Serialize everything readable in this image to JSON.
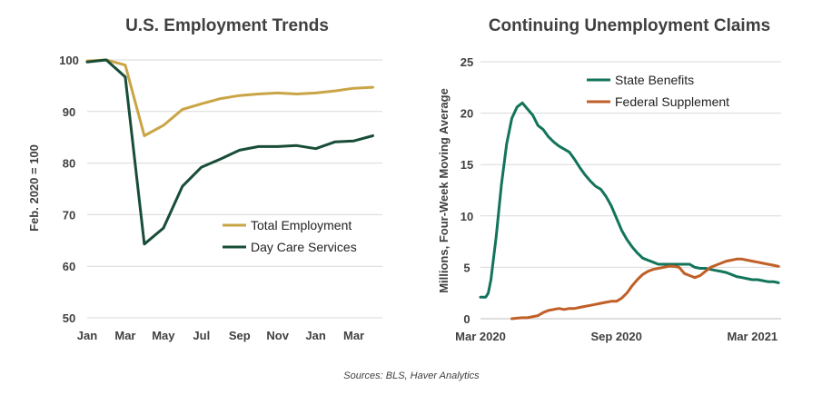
{
  "source": "Sources: BLS, Haver Analytics",
  "colors": {
    "gold": "#c9a545",
    "darkgreen": "#184d37",
    "green": "#12745a",
    "orange": "#c05f27"
  },
  "chart_data": [
    {
      "type": "line",
      "title": "U.S. Employment Trends",
      "ylabel": "Feb. 2020 = 100",
      "xlabel": "",
      "ylim": [
        50,
        100
      ],
      "yticks": [
        50,
        60,
        70,
        80,
        90,
        100
      ],
      "x_tick_labels": [
        "Jan",
        "Mar",
        "May",
        "Jul",
        "Sep",
        "Nov",
        "Jan",
        "Mar"
      ],
      "x_tick_positions": [
        0,
        2,
        4,
        6,
        8,
        10,
        12,
        14
      ],
      "x": [
        0,
        1,
        2,
        3,
        4,
        5,
        6,
        7,
        8,
        9,
        10,
        11,
        12,
        13,
        14,
        15
      ],
      "legend_position": "center-right",
      "grid": true,
      "series": [
        {
          "name": "Total Employment",
          "color": "#c9a545",
          "values": [
            99.8,
            100,
            99,
            85.3,
            87.3,
            90.4,
            91.5,
            92.5,
            93.1,
            93.4,
            93.6,
            93.4,
            93.6,
            94,
            94.5,
            94.7
          ]
        },
        {
          "name": "Day Care Services",
          "color": "#184d37",
          "values": [
            99.6,
            100,
            96.7,
            64.3,
            67.4,
            75.5,
            79.2,
            80.8,
            82.5,
            83.2,
            83.2,
            83.4,
            82.8,
            84.1,
            84.3,
            85.3
          ]
        }
      ]
    },
    {
      "type": "line",
      "title": "Continuing Unemployment Claims",
      "ylabel": "Millions, Four-Week Moving Average",
      "xlabel": "",
      "ylim": [
        0,
        25
      ],
      "yticks": [
        0,
        5,
        10,
        15,
        20,
        25
      ],
      "x_tick_labels": [
        "Mar 2020",
        "Sep 2020",
        "Mar 2021"
      ],
      "x_tick_positions": [
        0,
        26,
        52
      ],
      "legend_position": "top-center",
      "grid": true,
      "series": [
        {
          "name": "State Benefits",
          "color": "#12745a",
          "x": [
            0,
            1,
            1.5,
            2,
            3,
            4,
            5,
            6,
            7,
            8,
            9,
            10,
            11,
            12,
            13,
            14,
            15,
            16,
            17,
            18,
            19,
            20,
            21,
            22,
            23,
            24,
            25,
            26,
            27,
            28,
            29,
            30,
            31,
            32,
            33,
            34,
            35,
            36,
            37,
            38,
            39,
            40,
            41,
            42,
            43,
            44,
            45,
            46,
            47,
            48,
            49,
            50,
            51,
            52,
            53,
            54,
            55,
            56,
            57
          ],
          "values": [
            2.1,
            2.1,
            2.5,
            3.8,
            8,
            13,
            17,
            19.5,
            20.6,
            21,
            20.4,
            19.8,
            18.8,
            18.4,
            17.7,
            17.2,
            16.8,
            16.5,
            16.2,
            15.5,
            14.7,
            14,
            13.4,
            12.9,
            12.6,
            11.9,
            11,
            9.8,
            8.6,
            7.7,
            7,
            6.4,
            5.9,
            5.7,
            5.5,
            5.3,
            5.3,
            5.3,
            5.3,
            5.3,
            5.3,
            5.3,
            5,
            4.9,
            4.9,
            4.8,
            4.7,
            4.6,
            4.5,
            4.3,
            4.1,
            4,
            3.9,
            3.8,
            3.8,
            3.7,
            3.6,
            3.6,
            3.5
          ]
        },
        {
          "name": "Federal Supplement",
          "color": "#c05f27",
          "x": [
            6,
            7,
            8,
            9,
            10,
            11,
            12,
            13,
            14,
            15,
            16,
            17,
            18,
            19,
            20,
            21,
            22,
            23,
            24,
            25,
            26,
            27,
            28,
            29,
            30,
            31,
            32,
            33,
            34,
            35,
            36,
            37,
            38,
            39,
            40,
            41,
            42,
            43,
            44,
            45,
            46,
            47,
            48,
            49,
            50,
            51,
            52,
            53,
            54,
            55,
            56,
            57
          ],
          "values": [
            0,
            0.05,
            0.1,
            0.1,
            0.2,
            0.3,
            0.6,
            0.8,
            0.9,
            1.0,
            0.9,
            1.0,
            1.0,
            1.1,
            1.2,
            1.3,
            1.4,
            1.5,
            1.6,
            1.7,
            1.7,
            2.0,
            2.5,
            3.2,
            3.8,
            4.3,
            4.6,
            4.8,
            4.9,
            5.0,
            5.1,
            5.1,
            5.0,
            4.4,
            4.2,
            4.0,
            4.2,
            4.6,
            5.0,
            5.2,
            5.4,
            5.6,
            5.7,
            5.8,
            5.8,
            5.7,
            5.6,
            5.5,
            5.4,
            5.3,
            5.2,
            5.1
          ]
        }
      ]
    }
  ]
}
